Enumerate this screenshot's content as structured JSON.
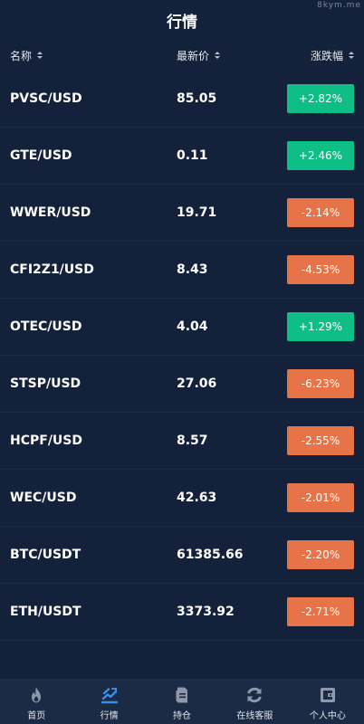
{
  "watermark": "8kym.me",
  "header": {
    "title": "行情"
  },
  "columns": {
    "name": "名称",
    "price": "最新价",
    "change": "涨跌幅"
  },
  "rows": [
    {
      "symbol": "PVSC/USD",
      "price": "85.05",
      "change": "+2.82%",
      "direction": "up"
    },
    {
      "symbol": "GTE/USD",
      "price": "0.11",
      "change": "+2.46%",
      "direction": "up"
    },
    {
      "symbol": "WWER/USD",
      "price": "19.71",
      "change": "-2.14%",
      "direction": "down"
    },
    {
      "symbol": "CFI2Z1/USD",
      "price": "8.43",
      "change": "-4.53%",
      "direction": "down"
    },
    {
      "symbol": "OTEC/USD",
      "price": "4.04",
      "change": "+1.29%",
      "direction": "up"
    },
    {
      "symbol": "STSP/USD",
      "price": "27.06",
      "change": "-6.23%",
      "direction": "down"
    },
    {
      "symbol": "HCPF/USD",
      "price": "8.57",
      "change": "-2.55%",
      "direction": "down"
    },
    {
      "symbol": "WEC/USD",
      "price": "42.63",
      "change": "-2.01%",
      "direction": "down"
    },
    {
      "symbol": "BTC/USDT",
      "price": "61385.66",
      "change": "-2.20%",
      "direction": "down"
    },
    {
      "symbol": "ETH/USDT",
      "price": "3373.92",
      "change": "-2.71%",
      "direction": "down"
    }
  ],
  "colors": {
    "up": "#0ebe84",
    "down": "#e67448",
    "background": "#13213a",
    "active_tab": "#3a8ee6"
  },
  "tabbar": [
    {
      "label": "首页",
      "icon": "fire-icon",
      "active": false
    },
    {
      "label": "行情",
      "icon": "market-chart-icon",
      "active": true
    },
    {
      "label": "持仓",
      "icon": "document-icon",
      "active": false
    },
    {
      "label": "在线客服",
      "icon": "refresh-icon",
      "active": false
    },
    {
      "label": "个人中心",
      "icon": "wallet-icon",
      "active": false
    }
  ]
}
